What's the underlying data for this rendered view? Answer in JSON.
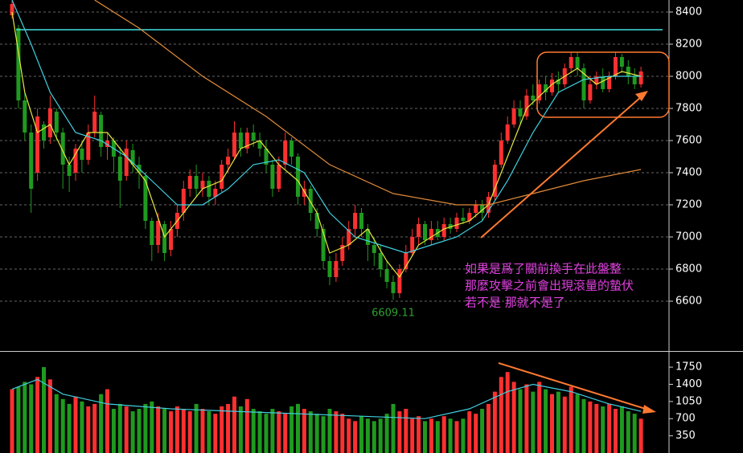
{
  "chart_data": [
    {
      "type": "candlestick",
      "open": [
        8380,
        8300,
        7850,
        7650,
        7400,
        7700,
        7620,
        7780,
        7650,
        7450,
        7400,
        7550,
        7480,
        7650,
        7760,
        7560,
        7600,
        7500,
        7380,
        7540,
        7450,
        7380,
        7100,
        6950,
        7080,
        6920,
        7050,
        7150,
        7300,
        7380,
        7300,
        7350,
        7250,
        7300,
        7450,
        7500,
        7650,
        7550,
        7650,
        7600,
        7550,
        7450,
        7300,
        7450,
        7600,
        7500,
        7250,
        7300,
        7150,
        7050,
        6850,
        6750,
        6850,
        6950,
        7050,
        7150,
        7050,
        6950,
        6900,
        6800,
        6720,
        6650,
        6800,
        6900,
        7000,
        7080,
        6980,
        7050,
        7000,
        7080,
        7050,
        7120,
        7100,
        7150,
        7200,
        7150,
        7250,
        7450,
        7600,
        7700,
        7800,
        7750,
        7880,
        7850,
        7950,
        7900,
        7980,
        7950,
        8050,
        8120,
        8050,
        7850,
        7950,
        8000,
        7920,
        8000,
        8120,
        8060,
        8000,
        7950
      ],
      "high": [
        8470,
        8320,
        7900,
        7700,
        7800,
        7720,
        7880,
        7800,
        7680,
        7500,
        7580,
        7600,
        7700,
        7880,
        7780,
        7650,
        7620,
        7560,
        7600,
        7580,
        7500,
        7400,
        7120,
        7150,
        7100,
        7100,
        7200,
        7350,
        7420,
        7450,
        7400,
        7380,
        7350,
        7480,
        7550,
        7720,
        7680,
        7680,
        7700,
        7650,
        7600,
        7480,
        7500,
        7650,
        7620,
        7520,
        7350,
        7320,
        7180,
        7080,
        6880,
        6900,
        7000,
        7100,
        7200,
        7180,
        7080,
        7000,
        6950,
        6850,
        6760,
        6830,
        6950,
        7050,
        7120,
        7100,
        7100,
        7100,
        7120,
        7120,
        7150,
        7180,
        7180,
        7230,
        7230,
        7280,
        7480,
        7650,
        7750,
        7850,
        7850,
        7920,
        7950,
        7980,
        8000,
        8020,
        8030,
        8080,
        8150,
        8150,
        8080,
        8000,
        8030,
        8050,
        8030,
        8150,
        8140,
        8100,
        8050,
        8060
      ],
      "low": [
        8360,
        7800,
        7600,
        7150,
        7350,
        7550,
        7580,
        7600,
        7300,
        7280,
        7350,
        7400,
        7450,
        7620,
        7500,
        7480,
        7400,
        7180,
        7350,
        7400,
        7300,
        7050,
        6850,
        6900,
        6850,
        6880,
        7000,
        7100,
        7250,
        7250,
        7250,
        7200,
        7200,
        7280,
        7400,
        7480,
        7500,
        7520,
        7560,
        7500,
        7400,
        7250,
        7280,
        7420,
        7450,
        7200,
        7200,
        7100,
        7000,
        6800,
        6700,
        6720,
        6820,
        6920,
        7000,
        7000,
        6850,
        6820,
        6750,
        6680,
        6609.11,
        6620,
        6780,
        6880,
        6950,
        6950,
        6950,
        6980,
        6980,
        7020,
        7030,
        7080,
        7080,
        7120,
        7100,
        7120,
        7230,
        7430,
        7580,
        7680,
        7700,
        7730,
        7820,
        7830,
        7850,
        7880,
        7900,
        7930,
        8020,
        8000,
        7800,
        7830,
        7920,
        7900,
        7900,
        7980,
        8020,
        7950,
        7920,
        7930
      ],
      "close": [
        8450,
        7850,
        7650,
        7300,
        7750,
        7600,
        7800,
        7650,
        7450,
        7380,
        7550,
        7480,
        7650,
        7780,
        7560,
        7600,
        7500,
        7350,
        7550,
        7450,
        7400,
        7100,
        6950,
        7100,
        6900,
        7050,
        7150,
        7300,
        7380,
        7300,
        7350,
        7250,
        7300,
        7450,
        7500,
        7650,
        7550,
        7650,
        7600,
        7550,
        7450,
        7300,
        7450,
        7600,
        7500,
        7250,
        7300,
        7150,
        7050,
        6850,
        6750,
        6850,
        6950,
        7050,
        7150,
        7050,
        6950,
        6900,
        6800,
        6720,
        6650,
        6800,
        6900,
        7000,
        7080,
        6980,
        7050,
        7000,
        7080,
        7050,
        7120,
        7100,
        7150,
        7200,
        7150,
        7250,
        7450,
        7600,
        7700,
        7800,
        7750,
        7880,
        7850,
        7950,
        7900,
        7980,
        7950,
        8050,
        8120,
        8050,
        7850,
        7950,
        8000,
        7920,
        8000,
        8120,
        8060,
        8000,
        7950,
        8030
      ],
      "up_color": "#ff3030",
      "down_color": "#1f9a1f",
      "lines": [
        {
          "color": "#e8e840",
          "x": [
            0,
            2,
            4,
            6,
            9,
            12,
            15,
            18,
            21,
            24,
            27,
            30,
            33,
            36,
            39,
            42,
            45,
            48,
            50,
            53,
            56,
            59,
            61,
            64,
            68,
            72,
            75,
            78,
            81,
            85,
            89,
            92,
            96,
            99
          ],
          "values": [
            8400,
            7900,
            7650,
            7700,
            7450,
            7650,
            7650,
            7500,
            7350,
            7000,
            7150,
            7300,
            7350,
            7550,
            7600,
            7450,
            7350,
            7150,
            6900,
            6950,
            7050,
            6850,
            6750,
            6950,
            7050,
            7100,
            7200,
            7500,
            7800,
            7950,
            8050,
            7950,
            8030,
            8000
          ]
        },
        {
          "color": "#40d0e0",
          "x": [
            0,
            3,
            6,
            10,
            14,
            18,
            22,
            26,
            30,
            34,
            38,
            42,
            46,
            50,
            54,
            58,
            62,
            66,
            70,
            74,
            78,
            82,
            86,
            90,
            94,
            99
          ],
          "values": [
            8475,
            8200,
            7900,
            7650,
            7600,
            7500,
            7350,
            7200,
            7200,
            7300,
            7450,
            7480,
            7400,
            7150,
            7000,
            6950,
            6900,
            6950,
            7000,
            7100,
            7350,
            7650,
            7900,
            7980,
            8000,
            8000
          ]
        },
        {
          "color": "#e08a3a",
          "x": [
            13,
            20,
            30,
            40,
            50,
            60,
            70,
            75,
            80,
            90,
            99
          ],
          "values": [
            8475,
            8300,
            8000,
            7750,
            7450,
            7270,
            7200,
            7200,
            7250,
            7350,
            7420
          ]
        }
      ],
      "hline": 8290,
      "hline_color": "#40e0e0",
      "ylim": [
        6290,
        8475
      ],
      "yticks": [
        6600,
        6800,
        7000,
        7200,
        7400,
        7600,
        7800,
        8000,
        8200,
        8400
      ],
      "grid": true,
      "annotations": [
        "如果是爲了關前換手在此盤整",
        "那麼攻擊之前會出現滾量的蟄伏",
        "若不是 那就不是了"
      ]
    },
    {
      "type": "bar",
      "values": [
        1300,
        1350,
        1450,
        1400,
        1550,
        1750,
        1500,
        1200,
        1100,
        1000,
        1150,
        1050,
        950,
        1000,
        1200,
        1300,
        900,
        1000,
        950,
        850,
        900,
        1000,
        1050,
        950,
        900,
        850,
        950,
        900,
        850,
        1000,
        900,
        850,
        800,
        950,
        1000,
        1150,
        950,
        1100,
        900,
        850,
        800,
        900,
        850,
        800,
        950,
        1000,
        900,
        850,
        800,
        750,
        900,
        850,
        800,
        700,
        650,
        750,
        700,
        650,
        700,
        800,
        1000,
        850,
        900,
        700,
        750,
        650,
        700,
        650,
        750,
        700,
        650,
        700,
        850,
        800,
        900,
        1000,
        1250,
        1550,
        1650,
        1450,
        1300,
        1400,
        1250,
        1450,
        1300,
        1200,
        1250,
        1150,
        1350,
        1200,
        1100,
        1050,
        1000,
        950,
        1000,
        900,
        950,
        850,
        800,
        700
      ],
      "line": {
        "color": "#40d0e0",
        "x": [
          0,
          4,
          8,
          15,
          25,
          35,
          45,
          55,
          65,
          72,
          78,
          82,
          88,
          94,
          99
        ],
        "values": [
          1300,
          1500,
          1200,
          1000,
          900,
          850,
          800,
          750,
          700,
          900,
          1250,
          1400,
          1250,
          1000,
          850
        ]
      },
      "ylim": [
        0,
        2030
      ],
      "yticks": [
        350,
        700,
        1050,
        1400,
        1750
      ],
      "grid": false
    }
  ]
}
